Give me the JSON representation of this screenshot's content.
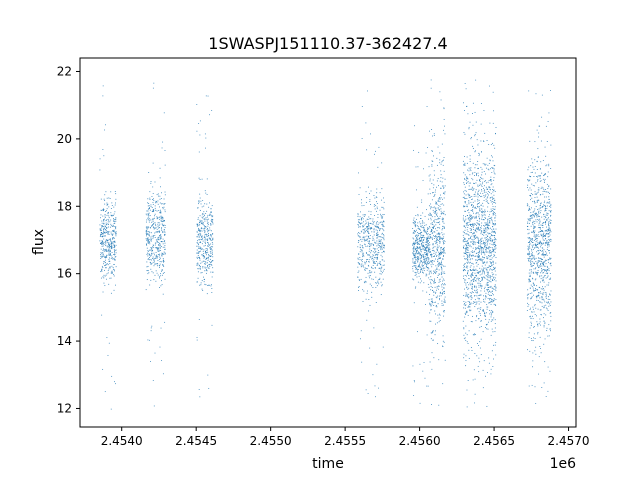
{
  "chart_data": {
    "type": "scatter",
    "title": "1SWASPJ151110.37-362427.4",
    "xlabel": "time",
    "ylabel": "flux",
    "x_offset_label": "1e6",
    "xlim": [
      2453720,
      2457050
    ],
    "ylim": [
      11.45,
      22.4
    ],
    "xticks": [
      2.454,
      2.4545,
      2.455,
      2.4555,
      2.456,
      2.4565,
      2.457
    ],
    "xtick_labels": [
      "2.4540",
      "2.4545",
      "2.4550",
      "2.4555",
      "2.4560",
      "2.4565",
      "2.4570"
    ],
    "yticks": [
      12,
      14,
      16,
      18,
      20,
      22
    ],
    "ytick_labels": [
      "12",
      "14",
      "16",
      "18",
      "20",
      "22"
    ],
    "grid": false,
    "point_color": "#1f77b4",
    "series": [
      {
        "observing_seasons": [
          {
            "x_start": 2453850,
            "x_end": 2453960,
            "center": 17.0,
            "spread": 0.65,
            "min": 11.95,
            "max": 21.6,
            "density": 380
          },
          {
            "x_start": 2454160,
            "x_end": 2454290,
            "center": 17.1,
            "spread": 0.7,
            "min": 12.05,
            "max": 21.7,
            "density": 420
          },
          {
            "x_start": 2454500,
            "x_end": 2454610,
            "center": 16.95,
            "spread": 0.65,
            "min": 12.0,
            "max": 21.5,
            "density": 360
          },
          {
            "x_start": 2455580,
            "x_end": 2455760,
            "center": 16.9,
            "spread": 0.7,
            "min": 12.0,
            "max": 21.6,
            "density": 480
          },
          {
            "x_start": 2455950,
            "x_end": 2456060,
            "center": 16.75,
            "spread": 0.5,
            "min": 12.0,
            "max": 21.4,
            "density": 420
          },
          {
            "x_start": 2456060,
            "x_end": 2456170,
            "center": 16.75,
            "spread": 1.3,
            "min": 12.0,
            "max": 21.8,
            "density": 520
          },
          {
            "x_start": 2456290,
            "x_end": 2456510,
            "center": 16.8,
            "spread": 1.4,
            "min": 12.0,
            "max": 21.9,
            "density": 1300
          },
          {
            "x_start": 2456720,
            "x_end": 2456880,
            "center": 16.8,
            "spread": 1.3,
            "min": 12.0,
            "max": 21.85,
            "density": 820
          }
        ]
      }
    ]
  }
}
